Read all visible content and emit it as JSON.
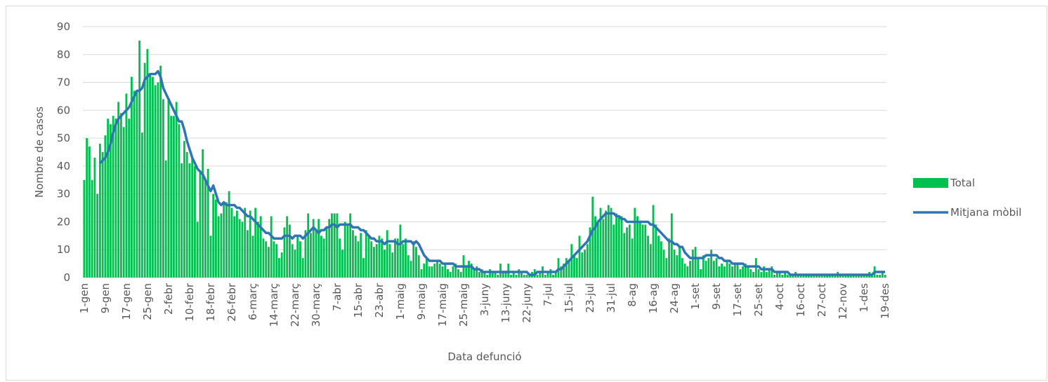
{
  "chart_data": {
    "type": "bar_line",
    "x_label": "Data defunció",
    "y_label": "Nombre de casos",
    "ylim": [
      0,
      90
    ],
    "yticks": [
      0,
      10,
      20,
      30,
      40,
      50,
      60,
      70,
      80,
      90
    ],
    "grid": true,
    "legend": "right",
    "categories": [
      "1-gen",
      null,
      null,
      null,
      null,
      null,
      null,
      null,
      "9-gen",
      null,
      null,
      null,
      null,
      null,
      null,
      null,
      "17-gen",
      null,
      null,
      null,
      null,
      null,
      null,
      null,
      "25-gen",
      null,
      null,
      null,
      null,
      null,
      null,
      null,
      "2-febr",
      null,
      null,
      null,
      null,
      null,
      null,
      null,
      "10-febr",
      null,
      null,
      null,
      null,
      null,
      null,
      null,
      "18-febr",
      null,
      null,
      null,
      null,
      null,
      null,
      null,
      "26-febr",
      null,
      null,
      null,
      null,
      null,
      null,
      null,
      "6-març",
      null,
      null,
      null,
      null,
      null,
      null,
      null,
      "14-març",
      null,
      null,
      null,
      null,
      null,
      null,
      null,
      "22-març",
      null,
      null,
      null,
      null,
      null,
      null,
      null,
      "30-març",
      null,
      null,
      null,
      null,
      null,
      null,
      null,
      "7-abr",
      null,
      null,
      null,
      null,
      null,
      null,
      null,
      "15-abr",
      null,
      null,
      null,
      null,
      null,
      null,
      null,
      "23-abr",
      null,
      null,
      null,
      null,
      null,
      null,
      null,
      "1-maig",
      null,
      null,
      null,
      null,
      null,
      null,
      null,
      "9-maig",
      null,
      null,
      null,
      null,
      null,
      null,
      null,
      "17-maig",
      null,
      null,
      null,
      null,
      null,
      null,
      null,
      "25-maig",
      null,
      null,
      null,
      null,
      null,
      null,
      null,
      "3-juny",
      null,
      null,
      null,
      null,
      null,
      null,
      null,
      "13-juny",
      null,
      null,
      null,
      null,
      null,
      null,
      null,
      "22-juny",
      null,
      null,
      null,
      null,
      null,
      null,
      null,
      "7-jul",
      null,
      null,
      null,
      null,
      null,
      null,
      null,
      "15-jul",
      null,
      null,
      null,
      null,
      null,
      null,
      null,
      "23-jul",
      null,
      null,
      null,
      null,
      null,
      null,
      null,
      "31-jul",
      null,
      null,
      null,
      null,
      null,
      null,
      null,
      "8-ag",
      null,
      null,
      null,
      null,
      null,
      null,
      null,
      "16-ag",
      null,
      null,
      null,
      null,
      null,
      null,
      null,
      "24-ag",
      null,
      null,
      null,
      null,
      null,
      null,
      null,
      "1-set",
      null,
      null,
      null,
      null,
      null,
      null,
      null,
      "9-set",
      null,
      null,
      null,
      null,
      null,
      null,
      null,
      "17-set",
      null,
      null,
      null,
      null,
      null,
      null,
      null,
      "25-set",
      null,
      null,
      null,
      null,
      null,
      null,
      null,
      "4-oct",
      null,
      null,
      null,
      null,
      null,
      null,
      null,
      "16-oct",
      null,
      null,
      null,
      null,
      null,
      null,
      null,
      "27-oct",
      null,
      null,
      null,
      null,
      null,
      null,
      null,
      "12-nov",
      null,
      null,
      null,
      null,
      null,
      null,
      null,
      "1-des",
      null,
      null,
      null,
      null,
      null,
      null,
      null,
      "19-des"
    ],
    "series": [
      {
        "name": "Total",
        "kind": "bar",
        "color": "#00c050",
        "values": [
          35,
          50,
          47,
          35,
          43,
          30,
          48,
          45,
          51,
          57,
          55,
          58,
          57,
          63,
          59,
          54,
          66,
          57,
          72,
          67,
          67,
          85,
          52,
          77,
          82,
          73,
          72,
          69,
          70,
          76,
          64,
          42,
          64,
          58,
          58,
          63,
          55,
          41,
          49,
          45,
          41,
          43,
          40,
          20,
          38,
          46,
          35,
          39,
          15,
          30,
          28,
          22,
          23,
          27,
          27,
          31,
          25,
          22,
          24,
          21,
          20,
          25,
          17,
          24,
          15,
          25,
          20,
          22,
          14,
          13,
          11,
          22,
          13,
          12,
          7,
          9,
          18,
          22,
          19,
          12,
          10,
          15,
          13,
          7,
          17,
          23,
          16,
          21,
          17,
          21,
          15,
          14,
          18,
          21,
          23,
          23,
          23,
          14,
          10,
          20,
          19,
          23,
          17,
          15,
          13,
          16,
          7,
          17,
          15,
          13,
          11,
          12,
          15,
          14,
          10,
          17,
          12,
          9,
          14,
          14,
          19,
          12,
          14,
          8,
          6,
          13,
          11,
          8,
          3,
          5,
          7,
          4,
          4,
          5,
          6,
          5,
          4,
          5,
          3,
          2,
          4,
          5,
          3,
          2,
          8,
          4,
          6,
          5,
          3,
          4,
          2,
          3,
          2,
          1,
          3,
          2,
          2,
          1,
          5,
          2,
          2,
          5,
          1,
          2,
          1,
          3,
          2,
          1,
          1,
          1,
          2,
          3,
          1,
          2,
          4,
          1,
          2,
          3,
          1,
          2,
          7,
          4,
          5,
          7,
          6,
          12,
          8,
          7,
          15,
          9,
          10,
          12,
          18,
          29,
          22,
          20,
          25,
          21,
          24,
          26,
          25,
          19,
          23,
          22,
          22,
          16,
          18,
          19,
          14,
          25,
          22,
          20,
          19,
          19,
          15,
          12,
          26,
          19,
          15,
          13,
          10,
          7,
          14,
          23,
          10,
          8,
          11,
          7,
          5,
          4,
          6,
          10,
          11,
          7,
          3,
          8,
          6,
          7,
          10,
          6,
          7,
          4,
          5,
          4,
          6,
          5,
          4,
          5,
          5,
          3,
          4,
          5,
          4,
          3,
          2,
          7,
          3,
          2,
          4,
          2,
          3,
          4,
          1,
          2,
          2,
          1,
          2,
          1,
          1,
          1,
          2,
          1,
          1,
          1,
          1,
          1,
          1,
          1,
          1,
          1,
          1,
          1,
          1,
          1,
          1,
          1,
          2,
          1,
          1,
          1,
          1,
          1,
          1,
          1,
          1,
          1,
          1,
          1,
          2,
          1,
          4,
          1,
          1,
          2,
          1
        ]
      },
      {
        "name": "Mitjana mòbil",
        "kind": "line",
        "color": "#2e75b6",
        "values": [
          null,
          null,
          null,
          null,
          null,
          null,
          41,
          42,
          43,
          45,
          48,
          52,
          55,
          57,
          58,
          59,
          60,
          61,
          63,
          65,
          67,
          67,
          68,
          71,
          72,
          73,
          73,
          73,
          74,
          72,
          68,
          66,
          64,
          62,
          60,
          58,
          56,
          56,
          53,
          49,
          46,
          43,
          41,
          39,
          38,
          37,
          35,
          33,
          31,
          33,
          30,
          27,
          26,
          27,
          26,
          26,
          26,
          26,
          25,
          25,
          24,
          23,
          22,
          22,
          21,
          20,
          19,
          18,
          17,
          16,
          16,
          15,
          14,
          14,
          14,
          14,
          15,
          15,
          15,
          14,
          15,
          15,
          15,
          14,
          15,
          16,
          17,
          18,
          17,
          16,
          17,
          17,
          18,
          18,
          19,
          19,
          18,
          19,
          19,
          19,
          19,
          19,
          18,
          18,
          18,
          17,
          17,
          16,
          15,
          14,
          14,
          13,
          13,
          13,
          12,
          13,
          13,
          13,
          13,
          12,
          12,
          13,
          13,
          13,
          13,
          12,
          13,
          12,
          10,
          8,
          7,
          6,
          6,
          6,
          6,
          6,
          5,
          5,
          5,
          5,
          5,
          4,
          4,
          4,
          4,
          4,
          4,
          4,
          3,
          3,
          3,
          2,
          2,
          2,
          2,
          2,
          2,
          2,
          2,
          2,
          2,
          2,
          2,
          2,
          2,
          2,
          2,
          2,
          2,
          1,
          1,
          1,
          2,
          2,
          2,
          2,
          2,
          2,
          2,
          2,
          3,
          3,
          4,
          5,
          6,
          7,
          8,
          9,
          10,
          11,
          12,
          13,
          15,
          17,
          18,
          20,
          21,
          22,
          23,
          23,
          23,
          23,
          22,
          22,
          21,
          21,
          20,
          20,
          20,
          20,
          20,
          20,
          20,
          20,
          20,
          19,
          19,
          18,
          17,
          16,
          15,
          14,
          13,
          13,
          12,
          12,
          11,
          11,
          9,
          8,
          7,
          7,
          7,
          7,
          7,
          7,
          8,
          8,
          8,
          8,
          8,
          7,
          7,
          6,
          6,
          6,
          5,
          5,
          5,
          5,
          5,
          4,
          4,
          4,
          4,
          4,
          4,
          3,
          3,
          3,
          3,
          3,
          2,
          2,
          2,
          2,
          2,
          2,
          1,
          1,
          1,
          1,
          1,
          1,
          1,
          1,
          1,
          1,
          1,
          1,
          1,
          1,
          1,
          1,
          1,
          1,
          1,
          1,
          1,
          1,
          1,
          1,
          1,
          1,
          1,
          1,
          1,
          1,
          1,
          1,
          2,
          2,
          2,
          2,
          2
        ]
      }
    ]
  }
}
